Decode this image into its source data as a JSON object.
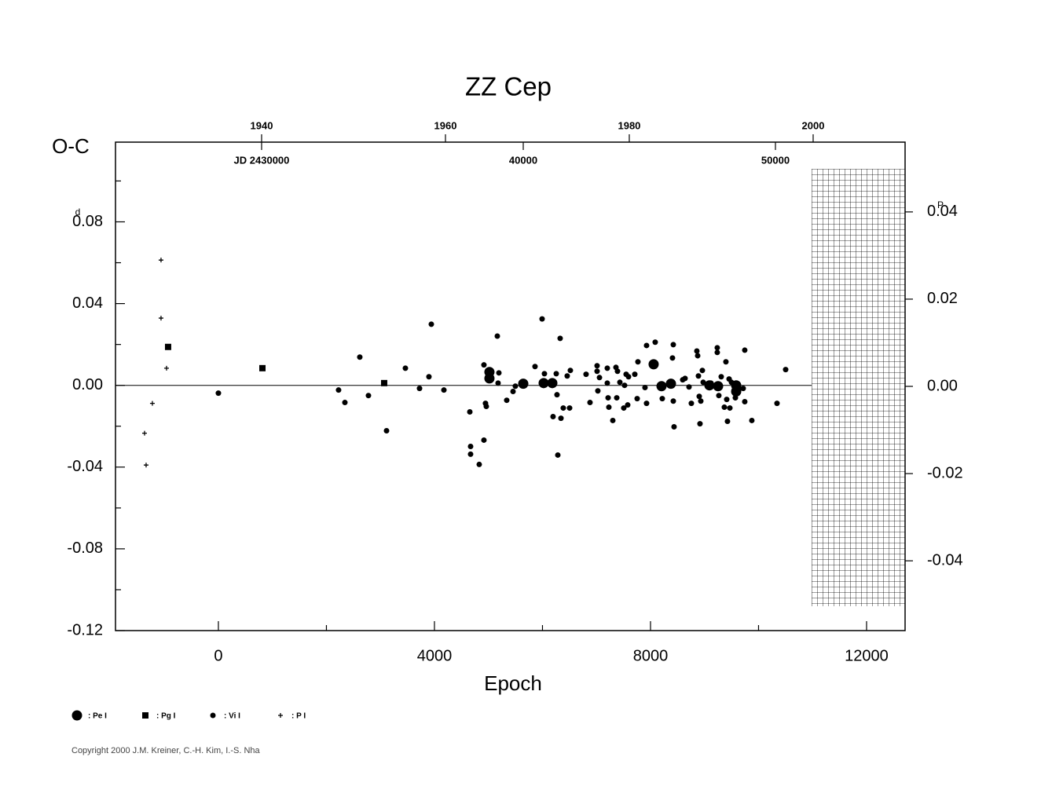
{
  "chart_data": {
    "type": "scatter",
    "title": "ZZ Cep",
    "x_label": "Epoch",
    "y_label": "O-C",
    "y_unit": "d",
    "y2_unit": "P",
    "copyright": "Copyright 2000 J.M. Kreiner, C.-H. Kim, I.-S. Nha",
    "xlim": [
      -1905,
      12713
    ],
    "xticks": [
      0,
      4000,
      8000,
      12000
    ],
    "xminorticks": [
      2000,
      6000,
      10000
    ],
    "ylim": [
      -0.12,
      0.119
    ],
    "yticks": [
      -0.12,
      -0.08,
      -0.04,
      {
        "value": 0,
        "label": "0.00"
      },
      0.04,
      0.08
    ],
    "yminorticks": [
      -0.1,
      -0.06,
      -0.02,
      0.02,
      0.06,
      0.1
    ],
    "y2lim": [
      -0.056,
      0.056
    ],
    "y2ticks": [
      -0.04,
      -0.02,
      {
        "value": 0,
        "label": "0.00"
      },
      0.02,
      0.04
    ],
    "top_ticks": [
      {
        "value": 800,
        "label": "1940"
      },
      {
        "value": 4204,
        "label": "1960"
      },
      {
        "value": 7607,
        "label": "1980"
      },
      {
        "value": 11011,
        "label": "2000"
      }
    ],
    "jd_ticks": [
      {
        "value": 800,
        "label": "JD  2430000"
      },
      {
        "value": 5644,
        "label": "40000"
      },
      {
        "value": 10313,
        "label": "50000"
      }
    ],
    "zero_line": true,
    "series": [
      {
        "name": ": Pe I",
        "marker": "circle-large",
        "color": "#000000",
        "x": [
          5018,
          5018,
          5644,
          6022,
          6182,
          8058,
          8204,
          8378,
          9091,
          9251,
          9586,
          9586
        ],
        "values": [
          0.0065,
          0.0034,
          0.0008,
          0.0011,
          0.0011,
          0.0103,
          -0.0004,
          0.0008,
          0,
          -0.0004,
          0,
          -0.003
        ]
      },
      {
        "name": ": Pg I",
        "marker": "square",
        "color": "#000000",
        "x": [
          -931,
          815,
          3069
        ],
        "values": [
          0.0188,
          0.0084,
          0.0011
        ]
      },
      {
        "name": ": Vi I",
        "marker": "circle",
        "color": "#000000",
        "x": [
          0,
          2225,
          2342,
          2618,
          2778,
          3113,
          3462,
          3724,
          3898,
          3942,
          4175,
          4655,
          4669,
          4669,
          4829,
          4916,
          4945,
          4916,
          4960,
          5164,
          5193,
          5178,
          5338,
          5455,
          5498,
          5862,
          5993,
          6036,
          6196,
          6269,
          6284,
          6255,
          6327,
          6342,
          6385,
          6458,
          6516,
          6502,
          6807,
          6880,
          7011,
          7011,
          7025,
          7055,
          7200,
          7200,
          7215,
          7229,
          7302,
          7360,
          7375,
          7389,
          7433,
          7505,
          7549,
          7520,
          7593,
          7578,
          7709,
          7753,
          7767,
          7898,
          7927,
          7927,
          8087,
          8218,
          8407,
          8422,
          8422,
          8436,
          8596,
          8640,
          8713,
          8756,
          8858,
          8873,
          8887,
          8902,
          8916,
          8931,
          8960,
          8975,
          9120,
          9236,
          9236,
          9265,
          9309,
          9367,
          9396,
          9411,
          9425,
          9455,
          9469,
          9498,
          9571,
          9629,
          9716,
          9745,
          9745,
          9876,
          10342,
          10502
        ],
        "values": [
          -0.0038,
          -0.0023,
          -0.0084,
          0.0138,
          -0.005,
          -0.0222,
          0.0084,
          -0.0015,
          0.0042,
          0.0299,
          -0.0023,
          -0.013,
          -0.0299,
          -0.0337,
          -0.0387,
          -0.0268,
          -0.0088,
          0.01,
          -0.0103,
          0.0241,
          0.0061,
          0.0011,
          -0.0073,
          -0.003,
          -0.0004,
          0.0092,
          0.0325,
          0.0057,
          -0.0153,
          -0.0046,
          -0.0341,
          0.0057,
          0.023,
          -0.0161,
          -0.0111,
          0.0046,
          0.0073,
          -0.0111,
          0.0054,
          -0.0084,
          0.0096,
          0.0069,
          -0.0027,
          0.0038,
          0.0084,
          0.0011,
          -0.0061,
          -0.0107,
          -0.0172,
          0.0088,
          -0.0061,
          0.0069,
          0.0015,
          -0.0111,
          0.0054,
          0,
          0.0042,
          -0.0096,
          0.0054,
          -0.0065,
          0.0115,
          -0.0011,
          0.0195,
          -0.0088,
          0.0211,
          -0.0065,
          0.0134,
          0.0199,
          -0.0077,
          -0.0203,
          0.0027,
          0.0034,
          -0.0008,
          -0.0088,
          0.0168,
          0.0145,
          0.0046,
          -0.0054,
          -0.0188,
          -0.0077,
          0.0073,
          0.0015,
          0.0011,
          0.0184,
          0.0161,
          -0.005,
          0.0042,
          -0.0107,
          0.0115,
          -0.0069,
          -0.0176,
          0.0031,
          -0.0111,
          0.0015,
          -0.0061,
          -0.0023,
          -0.0015,
          0.0172,
          -0.008,
          -0.0172,
          -0.0088,
          0.0077
        ]
      },
      {
        "name": ": P I",
        "marker": "plus",
        "color": "#000000",
        "x": [
          -1367,
          -1338,
          -1222,
          -1062,
          -1062,
          -960
        ],
        "values": [
          -0.0234,
          -0.039,
          -0.0088,
          0.0613,
          0.0329,
          0.0084
        ]
      }
    ]
  }
}
